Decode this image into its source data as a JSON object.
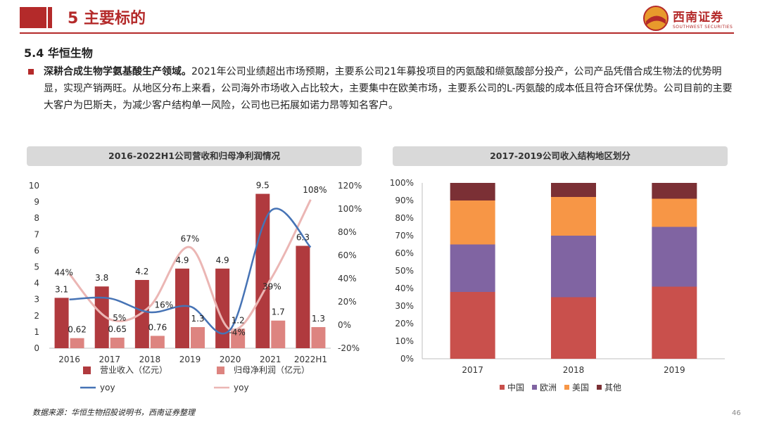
{
  "header": {
    "section_title": "5 主要标的",
    "logo_text": "西南证券",
    "logo_sub": "SOUTHWEST SECURITIES"
  },
  "subtitle": "5.4 华恒生物",
  "paragraph": {
    "bold_lead": "深耕合成生物学氨基酸生产领域。",
    "rest": "2021年公司业绩超出市场预期，主要系公司21年募投项目的丙氨酸和缬氨酸部分投产，公司产品凭借合成生物法的优势明显，实现产销两旺。从地区分布上来看，公司海外市场收入占比较大，主要集中在欧美市场，主要系公司的L-丙氨酸的成本低且符合环保优势。公司目前的主要大客户为巴斯夫，为减少客户结构单一风险，公司也已拓展如诺力昂等知名客户。"
  },
  "source": "数据来源：华恒生物招股说明书，西南证券整理",
  "page_number": "46",
  "colors": {
    "accent": "#b42a2a",
    "revenue_bar": "#b03a3e",
    "profit_bar": "#dd8480",
    "revenue_yoy": "#4673b5",
    "profit_yoy": "#ebb6b4",
    "china": "#c9504c",
    "europe": "#8064a2",
    "america": "#f79646",
    "other": "#7b3035"
  },
  "chart_data": [
    {
      "type": "bar",
      "title": "2016-2022H1公司营收和归母净利润情况",
      "categories": [
        "2016",
        "2017",
        "2018",
        "2019",
        "2020",
        "2021",
        "2022H1"
      ],
      "series": [
        {
          "name": "营业收入（亿元）",
          "axis": "left",
          "kind": "bar",
          "values": [
            3.1,
            3.8,
            4.2,
            4.9,
            4.9,
            9.5,
            6.3
          ],
          "labels": [
            "3.1",
            "3.8",
            "4.2",
            "4.9",
            "4.9",
            "9.5",
            "6.3"
          ]
        },
        {
          "name": "归母净利润（亿元）",
          "axis": "left",
          "kind": "bar",
          "values": [
            0.62,
            0.65,
            0.76,
            1.3,
            1.2,
            1.7,
            1.3
          ],
          "labels": [
            "0.62",
            "0.65",
            "0.76",
            "1.3",
            "1.2",
            "1.7",
            "1.3"
          ]
        },
        {
          "name": "yoy",
          "axis": "right",
          "kind": "line",
          "values": [
            22,
            23,
            11,
            16,
            -4,
            98,
            67
          ]
        },
        {
          "name": "yoy",
          "axis": "right",
          "kind": "line",
          "values": [
            44,
            5,
            16,
            67,
            -4,
            39,
            108
          ],
          "labels": [
            "44%",
            "5%",
            "16%",
            "67%",
            "-4%",
            "39%",
            "108%"
          ]
        }
      ],
      "ylim": [
        0,
        10
      ],
      "yticks": [
        "0",
        "1",
        "2",
        "3",
        "4",
        "5",
        "6",
        "7",
        "8",
        "9",
        "10"
      ],
      "y2lim": [
        -20,
        120
      ],
      "y2ticks": [
        "-20%",
        "0%",
        "20%",
        "40%",
        "60%",
        "80%",
        "100%",
        "120%"
      ],
      "grid": false,
      "legend_position": "bottom"
    },
    {
      "type": "bar",
      "stacked": true,
      "title": "2017-2019公司收入结构地区划分",
      "categories": [
        "2017",
        "2018",
        "2019"
      ],
      "series": [
        {
          "name": "中国",
          "values": [
            38,
            35,
            41
          ]
        },
        {
          "name": "欧洲",
          "values": [
            27,
            35,
            34
          ]
        },
        {
          "name": "美国",
          "values": [
            25,
            22,
            16
          ]
        },
        {
          "name": "其他",
          "values": [
            10,
            8,
            9
          ]
        }
      ],
      "ylim": [
        0,
        100
      ],
      "yticks": [
        "0%",
        "10%",
        "20%",
        "30%",
        "40%",
        "50%",
        "60%",
        "70%",
        "80%",
        "90%",
        "100%"
      ],
      "grid": false,
      "legend_position": "bottom"
    }
  ]
}
